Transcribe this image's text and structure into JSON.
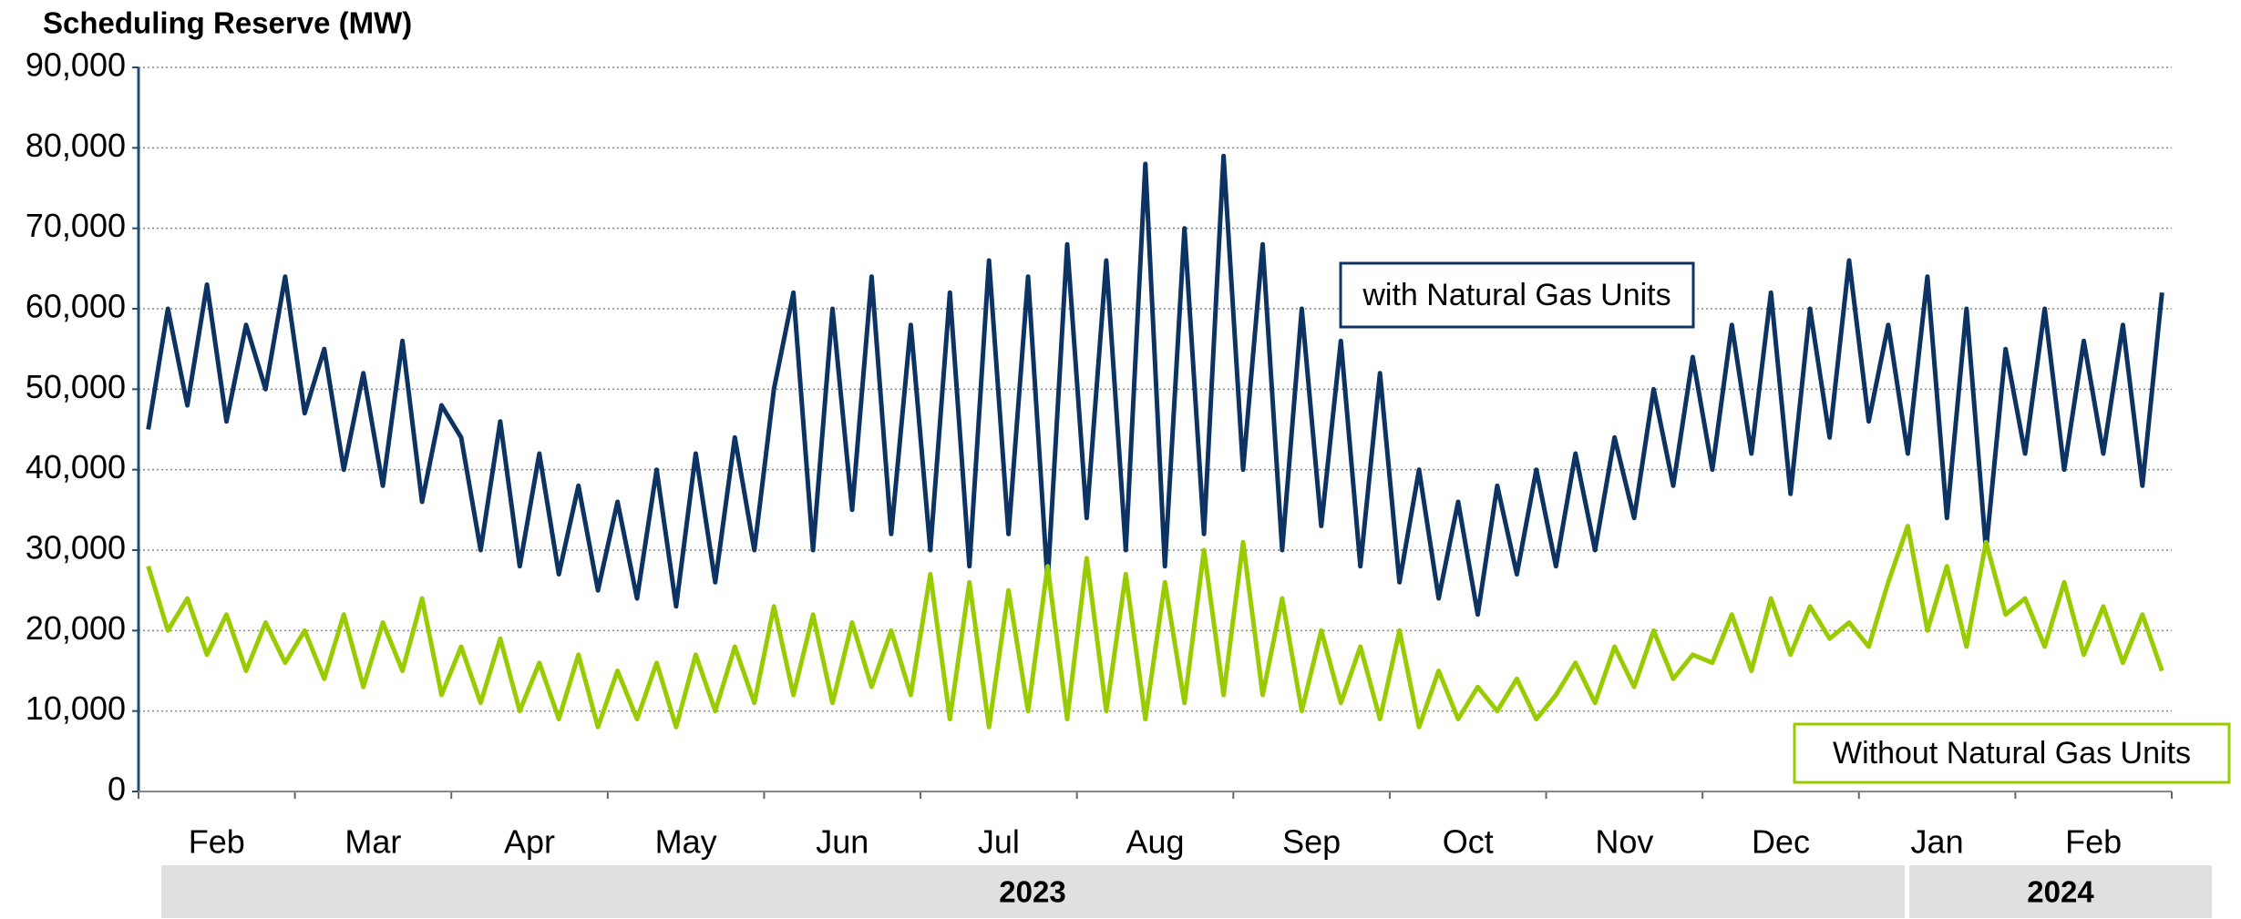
{
  "chart_data": {
    "type": "line",
    "title": "Scheduling Reserve (MW)",
    "categories": [
      "Feb",
      "Mar",
      "Apr",
      "May",
      "Jun",
      "Jul",
      "Aug",
      "Sep",
      "Oct",
      "Nov",
      "Dec",
      "Jan",
      "Feb"
    ],
    "year_groups": [
      "2023",
      "2024"
    ],
    "ylim": [
      0,
      90000
    ],
    "yticks": [
      0,
      {
        "value": 10000,
        "label": "10,000"
      },
      {
        "value": 20000,
        "label": "20,000"
      },
      {
        "value": 30000,
        "label": "30,000"
      },
      {
        "value": 40000,
        "label": "40,000"
      },
      {
        "value": 50000,
        "label": "50,000"
      },
      {
        "value": 60000,
        "label": "60,000"
      },
      {
        "value": 70000,
        "label": "70,000"
      },
      {
        "value": 80000,
        "label": "80,000"
      },
      {
        "value": 90000,
        "label": "90,000"
      }
    ],
    "grid": true,
    "series": [
      {
        "name": "with Natural Gas Units",
        "color": "#0c3362",
        "values": [
          [
            45000,
            60000,
            48000,
            63000,
            46000,
            58000,
            50000,
            64000
          ],
          [
            47000,
            55000,
            40000,
            52000,
            38000,
            56000,
            36000,
            48000
          ],
          [
            44000,
            30000,
            46000,
            28000,
            42000,
            27000,
            38000,
            25000
          ],
          [
            36000,
            24000,
            40000,
            23000,
            42000,
            26000,
            44000,
            30000
          ],
          [
            50000,
            62000,
            30000,
            60000,
            35000,
            64000,
            32000,
            58000
          ],
          [
            30000,
            62000,
            28000,
            66000,
            32000,
            64000,
            26000,
            68000
          ],
          [
            34000,
            66000,
            30000,
            78000,
            28000,
            70000,
            32000,
            79000
          ],
          [
            40000,
            68000,
            30000,
            60000,
            33000,
            56000,
            28000,
            52000
          ],
          [
            26000,
            40000,
            24000,
            36000,
            22000,
            38000,
            27000,
            40000
          ],
          [
            28000,
            42000,
            30000,
            44000,
            34000,
            50000,
            38000,
            54000
          ],
          [
            40000,
            58000,
            42000,
            62000,
            37000,
            60000,
            44000,
            66000
          ],
          [
            46000,
            58000,
            42000,
            64000,
            34000,
            60000,
            30000,
            55000
          ],
          [
            42000,
            60000,
            40000,
            56000,
            42000,
            58000,
            38000,
            62000
          ]
        ]
      },
      {
        "name": "Without Natural Gas Units",
        "color": "#99cc00",
        "values": [
          [
            28000,
            20000,
            24000,
            17000,
            22000,
            15000,
            21000,
            16000
          ],
          [
            20000,
            14000,
            22000,
            13000,
            21000,
            15000,
            24000,
            12000
          ],
          [
            18000,
            11000,
            19000,
            10000,
            16000,
            9000,
            17000,
            8000
          ],
          [
            15000,
            9000,
            16000,
            8000,
            17000,
            10000,
            18000,
            11000
          ],
          [
            23000,
            12000,
            22000,
            11000,
            21000,
            13000,
            20000,
            12000
          ],
          [
            27000,
            9000,
            26000,
            8000,
            25000,
            10000,
            28000,
            9000
          ],
          [
            29000,
            10000,
            27000,
            9000,
            26000,
            11000,
            30000,
            12000
          ],
          [
            31000,
            12000,
            24000,
            10000,
            20000,
            11000,
            18000,
            9000
          ],
          [
            20000,
            8000,
            15000,
            9000,
            13000,
            10000,
            14000,
            9000
          ],
          [
            12000,
            16000,
            11000,
            18000,
            13000,
            20000,
            14000,
            17000
          ],
          [
            16000,
            22000,
            15000,
            24000,
            17000,
            23000,
            19000,
            21000
          ],
          [
            18000,
            26000,
            33000,
            20000,
            28000,
            18000,
            31000,
            22000
          ],
          [
            24000,
            18000,
            26000,
            17000,
            23000,
            16000,
            22000,
            15000
          ]
        ]
      }
    ]
  }
}
